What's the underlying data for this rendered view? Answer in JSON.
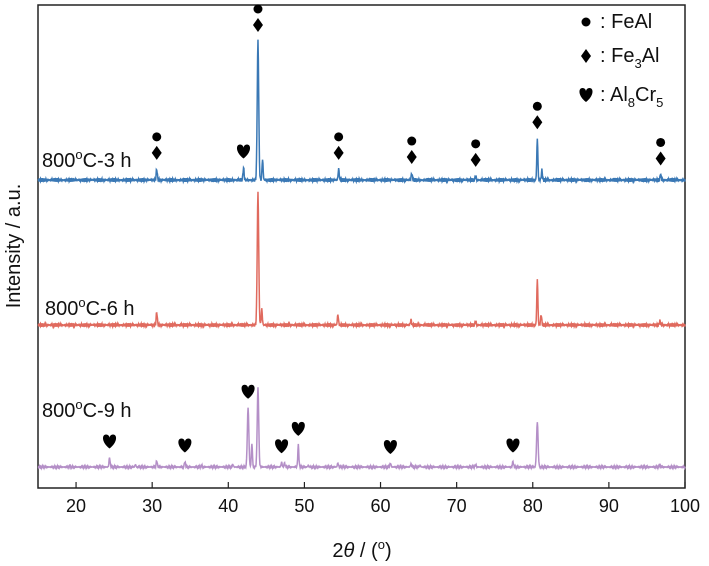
{
  "chart_data": {
    "type": "line",
    "title": "",
    "xlabel": "2θ / (°)",
    "xlabel_parts": {
      "prefix": "2",
      "theta": "θ",
      "suffix": " / (",
      "degree": "o",
      "close": ")"
    },
    "ylabel": "Intensity / a.u.",
    "xlim": [
      15,
      100
    ],
    "xticks": [
      20,
      30,
      40,
      50,
      60,
      70,
      80,
      90,
      100
    ],
    "legend_position": "top-right",
    "legend": [
      {
        "symbol": "circle",
        "label": ": FeAl"
      },
      {
        "symbol": "diamond",
        "label_parts": [
          ": Fe",
          "3",
          "Al"
        ]
      },
      {
        "symbol": "heart",
        "label_parts": [
          ": Al",
          "8",
          "Cr",
          "5"
        ]
      }
    ],
    "series": [
      {
        "name": "800°C-3 h",
        "label_parts": [
          "800",
          "o",
          "C-3 h"
        ],
        "color": "#3a78b5",
        "baseline": 0.6,
        "scale": 7.2,
        "peaks": [
          {
            "x": 30.6,
            "h": 0.08
          },
          {
            "x": 42.0,
            "h": 0.09
          },
          {
            "x": 43.9,
            "h": 1.0
          },
          {
            "x": 44.5,
            "h": 0.15
          },
          {
            "x": 54.5,
            "h": 0.08
          },
          {
            "x": 64.1,
            "h": 0.05
          },
          {
            "x": 72.5,
            "h": 0.03
          },
          {
            "x": 80.6,
            "h": 0.3
          },
          {
            "x": 81.2,
            "h": 0.07
          },
          {
            "x": 96.8,
            "h": 0.04
          }
        ],
        "phase_markers": [
          {
            "x": 30.6,
            "symbols": [
              "circle",
              "diamond"
            ]
          },
          {
            "x": 42.0,
            "symbols": [
              "heart"
            ]
          },
          {
            "x": 43.9,
            "symbols": [
              "circle",
              "diamond"
            ]
          },
          {
            "x": 54.5,
            "symbols": [
              "circle",
              "diamond"
            ]
          },
          {
            "x": 64.1,
            "symbols": [
              "circle",
              "diamond"
            ]
          },
          {
            "x": 72.5,
            "symbols": [
              "circle",
              "diamond"
            ]
          },
          {
            "x": 80.6,
            "symbols": [
              "circle",
              "diamond"
            ]
          },
          {
            "x": 96.8,
            "symbols": [
              "circle",
              "diamond"
            ]
          }
        ]
      },
      {
        "name": "800°C-6 h",
        "label_parts": [
          "800",
          "o",
          "C-6 h"
        ],
        "color": "#e06a5e",
        "baseline": 0.35,
        "scale": 7.2,
        "peaks": [
          {
            "x": 30.6,
            "h": 0.1
          },
          {
            "x": 43.9,
            "h": 1.0
          },
          {
            "x": 44.4,
            "h": 0.12
          },
          {
            "x": 54.4,
            "h": 0.08
          },
          {
            "x": 64.0,
            "h": 0.04
          },
          {
            "x": 72.5,
            "h": 0.03
          },
          {
            "x": 80.6,
            "h": 0.35
          },
          {
            "x": 81.1,
            "h": 0.08
          },
          {
            "x": 96.7,
            "h": 0.03
          }
        ],
        "phase_markers": []
      },
      {
        "name": "800°C-9 h",
        "label_parts": [
          "800",
          "o",
          "C-9 h"
        ],
        "color": "#b48fc7",
        "baseline": 0.05,
        "scale": 5.2,
        "peaks": [
          {
            "x": 19.2,
            "h": 0.02
          },
          {
            "x": 24.4,
            "h": 0.12
          },
          {
            "x": 27.8,
            "h": 0.03
          },
          {
            "x": 30.6,
            "h": 0.08
          },
          {
            "x": 34.3,
            "h": 0.07
          },
          {
            "x": 36.5,
            "h": 0.02
          },
          {
            "x": 40.6,
            "h": 0.03
          },
          {
            "x": 42.6,
            "h": 0.75
          },
          {
            "x": 43.1,
            "h": 0.3
          },
          {
            "x": 43.9,
            "h": 1.0
          },
          {
            "x": 47.0,
            "h": 0.06
          },
          {
            "x": 47.4,
            "h": 0.05
          },
          {
            "x": 49.2,
            "h": 0.28
          },
          {
            "x": 50.5,
            "h": 0.02
          },
          {
            "x": 54.4,
            "h": 0.05
          },
          {
            "x": 61.3,
            "h": 0.05
          },
          {
            "x": 64.0,
            "h": 0.04
          },
          {
            "x": 65.2,
            "h": 0.02
          },
          {
            "x": 72.5,
            "h": 0.03
          },
          {
            "x": 77.4,
            "h": 0.07
          },
          {
            "x": 80.6,
            "h": 0.57
          },
          {
            "x": 96.7,
            "h": 0.03
          }
        ],
        "phase_markers": [
          {
            "x": 24.4,
            "symbols": [
              "heart"
            ]
          },
          {
            "x": 34.3,
            "symbols": [
              "heart"
            ]
          },
          {
            "x": 42.6,
            "symbols": [
              "heart"
            ]
          },
          {
            "x": 47.0,
            "symbols": [
              "heart"
            ]
          },
          {
            "x": 49.2,
            "symbols": [
              "heart"
            ]
          },
          {
            "x": 61.3,
            "symbols": [
              "heart"
            ]
          },
          {
            "x": 77.4,
            "symbols": [
              "heart"
            ]
          }
        ]
      }
    ]
  }
}
